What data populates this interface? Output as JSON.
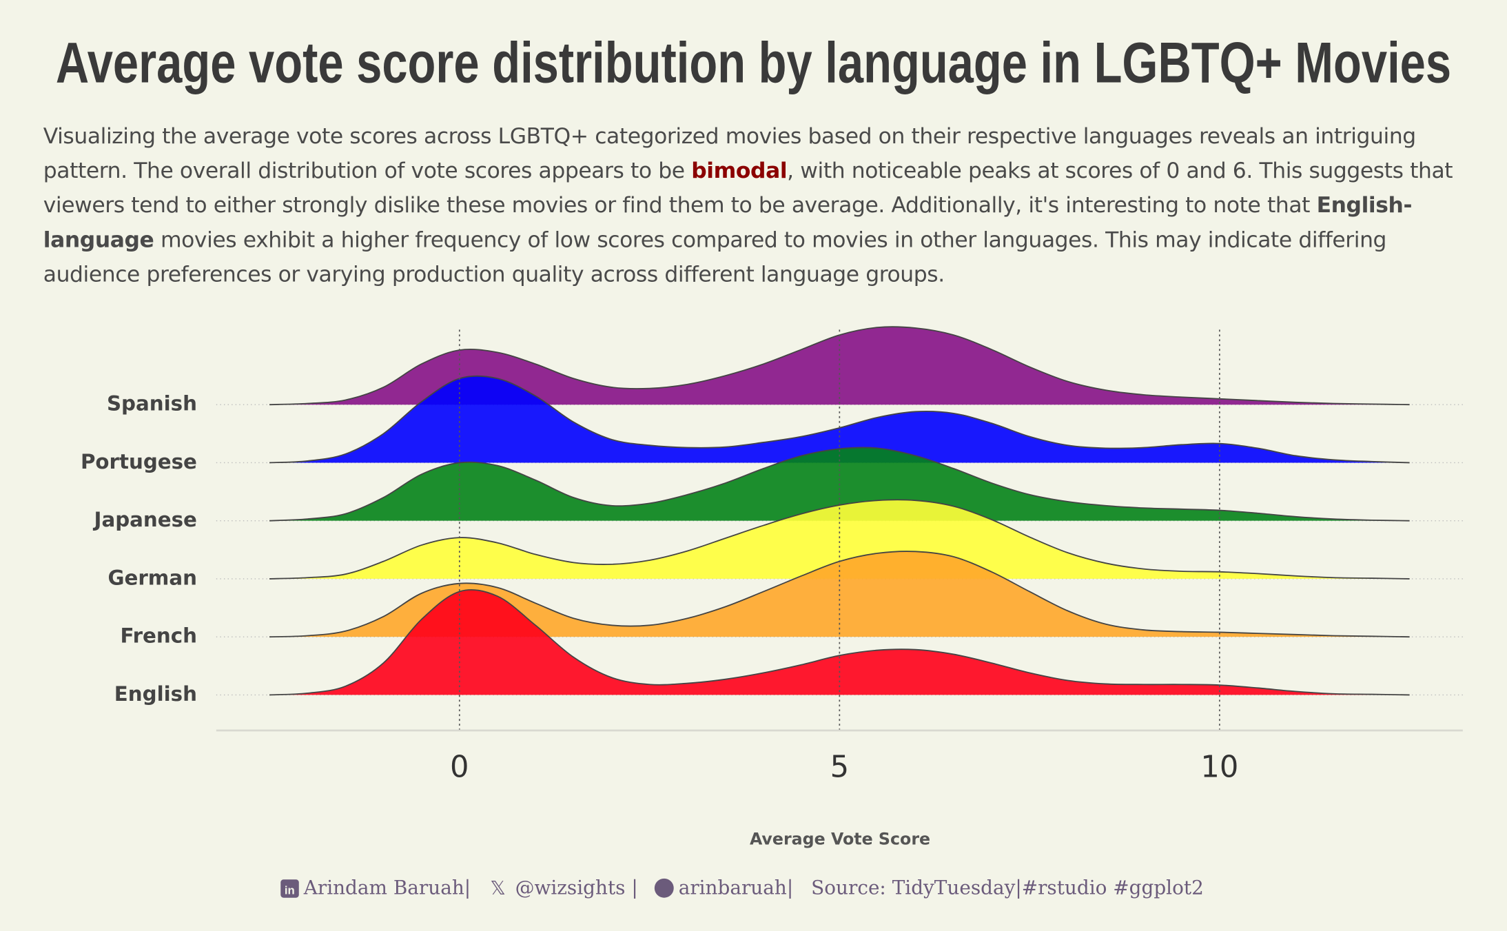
{
  "chart_data": {
    "type": "ridgeline",
    "title": "Average vote score distribution by language in LGBTQ+ Movies",
    "subtitle": [
      "Visualizing the average vote scores across LGBTQ+ categorized movies based on their respective languages reveals an intriguing pattern. The overall distribution of vote scores appears to be ",
      "bimodal",
      ", with noticeable peaks at scores of 0 and 6. This suggests that viewers tend to either strongly dislike these movies or find them to be average. Additionally, it's interesting to note that ",
      "English-language",
      " movies exhibit a higher frequency of low scores compared to movies in other languages. This may indicate differing audience preferences or varying production quality across different language groups."
    ],
    "x_label": "Average Vote Score",
    "caption": [
      "Arindam Baruah|",
      "@wizsights |",
      "arinbaruah|",
      "Source: TidyTuesday|#rstudio #ggplot2"
    ],
    "xlim": [
      -3.2,
      13.2
    ],
    "xticks": [
      0,
      5,
      10
    ],
    "grid": true,
    "x": [
      -2.5,
      -2,
      -1.5,
      -1,
      -0.5,
      0,
      0.5,
      1,
      1.5,
      2,
      2.5,
      3,
      3.5,
      4,
      4.5,
      5,
      5.5,
      6,
      6.5,
      7,
      7.5,
      8,
      8.5,
      9,
      9.5,
      10,
      10.5,
      11,
      11.5,
      12,
      12.5
    ],
    "series": [
      {
        "name": "Spanish",
        "color": "#861287",
        "values": [
          0,
          0.02,
          0.08,
          0.3,
          0.7,
          0.94,
          0.9,
          0.7,
          0.45,
          0.3,
          0.28,
          0.35,
          0.5,
          0.7,
          0.95,
          1.2,
          1.33,
          1.32,
          1.2,
          0.95,
          0.65,
          0.4,
          0.25,
          0.17,
          0.13,
          0.1,
          0.07,
          0.04,
          0.02,
          0.01,
          0
        ]
      },
      {
        "name": "Portugese",
        "color": "#0000ff",
        "values": [
          0,
          0.03,
          0.15,
          0.5,
          1.05,
          1.45,
          1.45,
          1.15,
          0.7,
          0.4,
          0.3,
          0.26,
          0.27,
          0.35,
          0.45,
          0.6,
          0.78,
          0.88,
          0.85,
          0.68,
          0.45,
          0.3,
          0.25,
          0.26,
          0.31,
          0.33,
          0.25,
          0.12,
          0.05,
          0.02,
          0
        ]
      },
      {
        "name": "Japanese",
        "color": "#048318",
        "values": [
          0,
          0.03,
          0.12,
          0.4,
          0.8,
          1.0,
          0.95,
          0.7,
          0.4,
          0.26,
          0.3,
          0.45,
          0.65,
          0.9,
          1.12,
          1.24,
          1.25,
          1.12,
          0.9,
          0.65,
          0.45,
          0.33,
          0.26,
          0.22,
          0.2,
          0.18,
          0.13,
          0.07,
          0.03,
          0.01,
          0
        ]
      },
      {
        "name": "German",
        "color": "#ffff3a",
        "values": [
          0,
          0.02,
          0.08,
          0.3,
          0.58,
          0.71,
          0.62,
          0.42,
          0.28,
          0.25,
          0.32,
          0.48,
          0.7,
          0.92,
          1.12,
          1.27,
          1.35,
          1.35,
          1.25,
          1.02,
          0.72,
          0.45,
          0.27,
          0.17,
          0.13,
          0.12,
          0.09,
          0.05,
          0.02,
          0.01,
          0
        ]
      },
      {
        "name": "French",
        "color": "#ffa72a",
        "values": [
          0,
          0.02,
          0.1,
          0.35,
          0.75,
          0.92,
          0.85,
          0.58,
          0.32,
          0.2,
          0.2,
          0.32,
          0.52,
          0.78,
          1.05,
          1.3,
          1.44,
          1.47,
          1.38,
          1.12,
          0.78,
          0.45,
          0.22,
          0.12,
          0.09,
          0.08,
          0.06,
          0.04,
          0.02,
          0.01,
          0
        ]
      },
      {
        "name": "English",
        "color": "#ff0019",
        "values": [
          0,
          0.03,
          0.15,
          0.55,
          1.3,
          1.78,
          1.7,
          1.2,
          0.65,
          0.3,
          0.18,
          0.2,
          0.27,
          0.38,
          0.52,
          0.68,
          0.77,
          0.78,
          0.7,
          0.55,
          0.38,
          0.25,
          0.19,
          0.18,
          0.18,
          0.17,
          0.12,
          0.06,
          0.02,
          0.01,
          0
        ]
      }
    ]
  }
}
